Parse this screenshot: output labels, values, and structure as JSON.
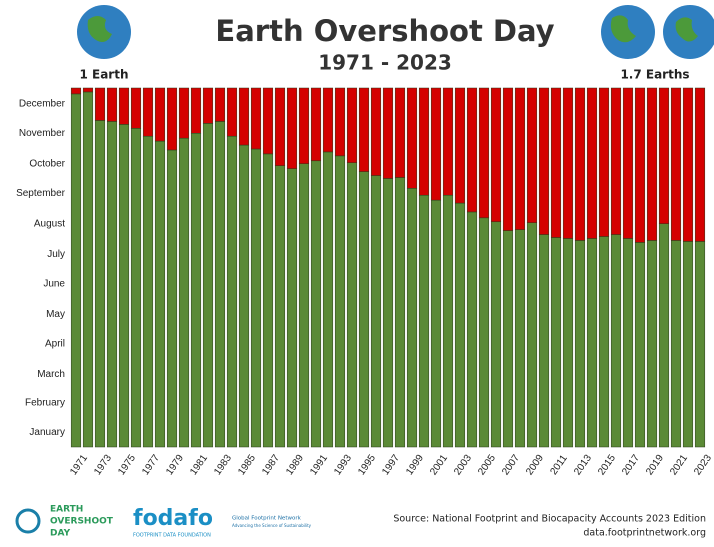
{
  "chart_data": {
    "type": "stacked-bar",
    "title": "Earth Overshoot Day",
    "subtitle": "1971 - 2023",
    "annotations": [
      "1 Earth",
      "1.7 Earths"
    ],
    "source": [
      "Source: National Footprint and Biocapacity Accounts 2023 Edition",
      "data.footprintnetwork.org"
    ],
    "logos": [
      "EARTH",
      "OVERSHOOT",
      "DAY",
      "fodafo",
      "FOOTPRINT DATA FOUNDATION",
      "Global Footprint Network",
      "Advancing the Science of Sustainability"
    ],
    "categories": [
      "1971",
      null,
      "1973",
      null,
      "1975",
      null,
      "1977",
      null,
      "1979",
      null,
      "1981",
      null,
      "1983",
      null,
      "1985",
      null,
      "1987",
      null,
      "1989",
      null,
      "1991",
      null,
      "1993",
      null,
      "1995",
      null,
      "1997",
      null,
      "1999",
      null,
      "2001",
      null,
      "2003",
      null,
      "2005",
      null,
      "2007",
      null,
      "2009",
      null,
      "2011",
      null,
      "2013",
      null,
      "2015",
      null,
      "2017",
      null,
      "2019",
      null,
      "2021",
      null,
      "2023"
    ],
    "series": [
      {
        "color": "#5b8a36",
        "values": [
          359,
          361,
          332,
          331,
          328,
          324,
          316,
          311,
          302,
          314,
          319,
          329,
          331,
          316,
          307,
          303,
          298,
          286,
          283,
          288,
          291,
          300,
          296,
          289,
          280,
          276,
          273,
          274,
          263,
          256,
          251,
          256,
          248,
          239,
          233,
          229,
          220,
          221,
          228,
          216,
          213,
          212,
          210,
          212,
          214,
          216,
          212,
          208,
          210,
          227,
          210,
          209,
          209
        ]
      },
      {
        "color": "#d40000",
        "values": [
          6,
          4,
          33,
          34,
          37,
          41,
          49,
          54,
          63,
          51,
          46,
          36,
          34,
          49,
          58,
          62,
          67,
          79,
          82,
          77,
          74,
          65,
          69,
          76,
          85,
          89,
          92,
          91,
          102,
          109,
          114,
          109,
          117,
          126,
          132,
          136,
          145,
          144,
          137,
          149,
          152,
          153,
          155,
          153,
          151,
          149,
          153,
          157,
          155,
          138,
          155,
          156,
          156
        ]
      }
    ],
    "ylim": [
      0,
      365
    ],
    "yticks": [
      {
        "value": 15,
        "label": "January"
      },
      {
        "value": 45,
        "label": "February"
      },
      {
        "value": 74,
        "label": "March"
      },
      {
        "value": 105,
        "label": "April"
      },
      {
        "value": 135,
        "label": "May"
      },
      {
        "value": 166,
        "label": "June"
      },
      {
        "value": 196,
        "label": "July"
      },
      {
        "value": 227,
        "label": "August"
      },
      {
        "value": 258,
        "label": "September"
      },
      {
        "value": 288,
        "label": "October"
      },
      {
        "value": 319,
        "label": "November"
      },
      {
        "value": 349,
        "label": "December"
      }
    ]
  }
}
